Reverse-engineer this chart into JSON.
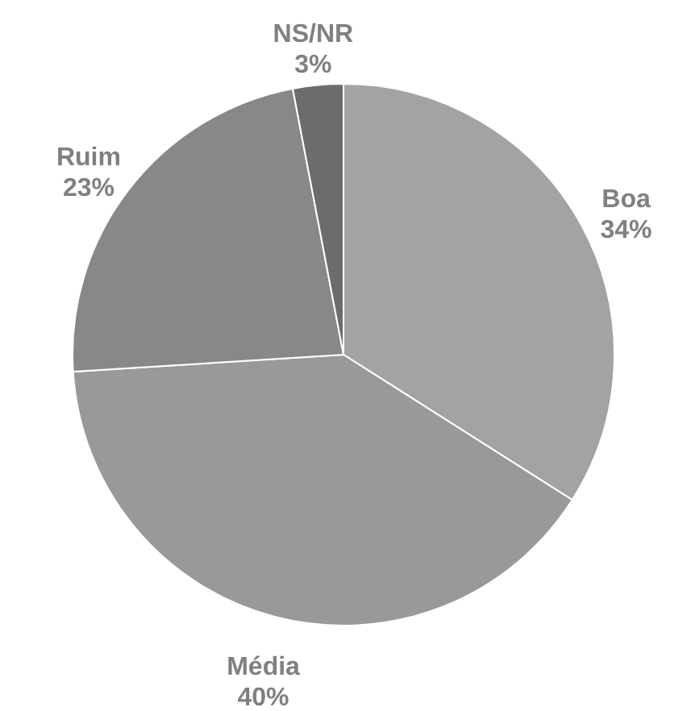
{
  "chart_data": {
    "type": "pie",
    "categories": [
      "Boa",
      "Média",
      "Ruim",
      "NS/NR"
    ],
    "values": [
      34,
      40,
      23,
      3
    ],
    "value_labels": [
      "34%",
      "40%",
      "23%",
      "3%"
    ],
    "colors": [
      "#a3a3a3",
      "#999999",
      "#888888",
      "#6c6c6c"
    ],
    "legend": false
  }
}
